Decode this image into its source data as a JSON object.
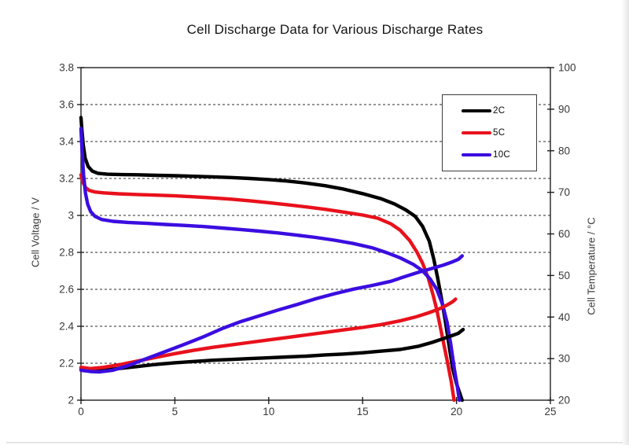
{
  "page": {
    "background": "#ffffff"
  },
  "chart_data": {
    "type": "line",
    "title": "Cell Discharge Data for Various Discharge Rates",
    "x_axis": {
      "label": "",
      "min": 0,
      "max": 25,
      "tick_values": [
        0,
        5,
        10,
        15,
        20,
        25
      ],
      "tick_labels": [
        "0",
        "5",
        "10",
        "15",
        "20",
        "25"
      ]
    },
    "y_left_axis": {
      "label": "Cell Voltage / V",
      "min": 2,
      "max": 3.8,
      "tick_values": [
        3.8,
        3.6,
        3.4,
        3.2,
        3.0,
        2.8,
        2.6,
        2.4,
        2.2,
        2.0
      ],
      "tick_labels": [
        "3.8",
        "3.6",
        "3.4",
        "3.2",
        "3",
        "2.8",
        "2.6",
        "2.4",
        "2.2",
        "2"
      ]
    },
    "y_right_axis": {
      "label": "Cell Temperature / °C",
      "min": 20,
      "max": 100,
      "tick_values": [
        100,
        90,
        80,
        70,
        60,
        50,
        40,
        30,
        20
      ],
      "tick_labels": [
        "100",
        "90",
        "80",
        "70",
        "60",
        "50",
        "40",
        "30",
        "20"
      ]
    },
    "gridlines": {
      "axis": "left",
      "style": "dashed",
      "values": [
        3.6,
        3.4,
        3.2,
        3.0,
        2.8,
        2.6,
        2.4,
        2.2
      ]
    },
    "legend": {
      "position": "top-right",
      "entries": [
        {
          "label": "2C",
          "color": "#000000"
        },
        {
          "label": "5C",
          "color": "#e8111c"
        },
        {
          "label": "10C",
          "color": "#3b0de0"
        }
      ]
    },
    "series": [
      {
        "id": "voltage-2C",
        "name": "2C",
        "measure": "voltage",
        "axis": "left",
        "color": "#000000",
        "points": [
          [
            0,
            3.53
          ],
          [
            0.05,
            3.46
          ],
          [
            0.12,
            3.38
          ],
          [
            0.22,
            3.31
          ],
          [
            0.38,
            3.265
          ],
          [
            0.6,
            3.24
          ],
          [
            0.9,
            3.228
          ],
          [
            1.4,
            3.223
          ],
          [
            2.2,
            3.221
          ],
          [
            3,
            3.22
          ],
          [
            4,
            3.217
          ],
          [
            5,
            3.215
          ],
          [
            6,
            3.212
          ],
          [
            7,
            3.209
          ],
          [
            8,
            3.205
          ],
          [
            9,
            3.2
          ],
          [
            10,
            3.194
          ],
          [
            11,
            3.186
          ],
          [
            12,
            3.175
          ],
          [
            13,
            3.161
          ],
          [
            14,
            3.142
          ],
          [
            15,
            3.118
          ],
          [
            16,
            3.09
          ],
          [
            16.7,
            3.062
          ],
          [
            17.3,
            3.03
          ],
          [
            17.8,
            2.995
          ],
          [
            18.2,
            2.94
          ],
          [
            18.55,
            2.86
          ],
          [
            18.8,
            2.76
          ],
          [
            19,
            2.66
          ],
          [
            19.2,
            2.55
          ],
          [
            19.4,
            2.43
          ],
          [
            19.6,
            2.3
          ],
          [
            19.8,
            2.17
          ],
          [
            20,
            2.09
          ],
          [
            20.3,
            2.0
          ]
        ]
      },
      {
        "id": "voltage-5C",
        "name": "5C",
        "measure": "voltage",
        "axis": "left",
        "color": "#e8111c",
        "points": [
          [
            0,
            3.22
          ],
          [
            0.1,
            3.18
          ],
          [
            0.25,
            3.15
          ],
          [
            0.45,
            3.135
          ],
          [
            0.75,
            3.127
          ],
          [
            1.2,
            3.122
          ],
          [
            2,
            3.117
          ],
          [
            3,
            3.113
          ],
          [
            4,
            3.11
          ],
          [
            5,
            3.106
          ],
          [
            6,
            3.101
          ],
          [
            7,
            3.095
          ],
          [
            8,
            3.088
          ],
          [
            9,
            3.079
          ],
          [
            10,
            3.069
          ],
          [
            11,
            3.058
          ],
          [
            12,
            3.046
          ],
          [
            13,
            3.033
          ],
          [
            14,
            3.018
          ],
          [
            15,
            3.002
          ],
          [
            15.8,
            2.985
          ],
          [
            16.5,
            2.955
          ],
          [
            17,
            2.92
          ],
          [
            17.5,
            2.865
          ],
          [
            17.9,
            2.8
          ],
          [
            18.2,
            2.74
          ],
          [
            18.5,
            2.66
          ],
          [
            18.75,
            2.57
          ],
          [
            18.95,
            2.49
          ],
          [
            19.15,
            2.39
          ],
          [
            19.35,
            2.29
          ],
          [
            19.55,
            2.19
          ],
          [
            19.72,
            2.1
          ],
          [
            19.87,
            2.0
          ]
        ]
      },
      {
        "id": "voltage-10C",
        "name": "10C",
        "measure": "voltage",
        "axis": "left",
        "color": "#3b0de0",
        "points": [
          [
            0,
            3.47
          ],
          [
            0.06,
            3.35
          ],
          [
            0.14,
            3.22
          ],
          [
            0.24,
            3.12
          ],
          [
            0.36,
            3.06
          ],
          [
            0.52,
            3.02
          ],
          [
            0.75,
            2.995
          ],
          [
            1.1,
            2.978
          ],
          [
            1.7,
            2.968
          ],
          [
            2.5,
            2.962
          ],
          [
            3.5,
            2.957
          ],
          [
            4.5,
            2.951
          ],
          [
            5.5,
            2.946
          ],
          [
            6.5,
            2.94
          ],
          [
            7.5,
            2.932
          ],
          [
            8.5,
            2.924
          ],
          [
            9.5,
            2.915
          ],
          [
            10.5,
            2.905
          ],
          [
            11.5,
            2.893
          ],
          [
            12.5,
            2.881
          ],
          [
            13.5,
            2.866
          ],
          [
            14.5,
            2.848
          ],
          [
            15.5,
            2.825
          ],
          [
            16.3,
            2.798
          ],
          [
            17,
            2.77
          ],
          [
            17.7,
            2.735
          ],
          [
            18.2,
            2.7
          ],
          [
            18.6,
            2.655
          ],
          [
            18.95,
            2.6
          ],
          [
            19.25,
            2.52
          ],
          [
            19.5,
            2.42
          ],
          [
            19.7,
            2.3
          ],
          [
            19.9,
            2.16
          ],
          [
            20.05,
            2.07
          ],
          [
            20.15,
            2.0
          ]
        ]
      },
      {
        "id": "temperature-2C",
        "name": "2C",
        "measure": "temperature",
        "axis": "right",
        "color": "#000000",
        "points": [
          [
            0,
            27.7
          ],
          [
            0.5,
            27.4
          ],
          [
            1,
            27.3
          ],
          [
            1.8,
            27.5
          ],
          [
            3,
            28.1
          ],
          [
            4,
            28.6
          ],
          [
            5,
            29.0
          ],
          [
            6,
            29.3
          ],
          [
            7,
            29.6
          ],
          [
            8,
            29.8
          ],
          [
            9,
            30.0
          ],
          [
            10,
            30.2
          ],
          [
            11,
            30.4
          ],
          [
            12,
            30.6
          ],
          [
            13,
            30.9
          ],
          [
            14,
            31.1
          ],
          [
            15,
            31.4
          ],
          [
            16,
            31.8
          ],
          [
            17,
            32.2
          ],
          [
            18,
            33.0
          ],
          [
            18.7,
            33.9
          ],
          [
            19.3,
            34.8
          ],
          [
            19.8,
            35.6
          ],
          [
            20.1,
            36.1
          ],
          [
            20.35,
            37.0
          ]
        ]
      },
      {
        "id": "temperature-5C",
        "name": "5C",
        "measure": "temperature",
        "axis": "right",
        "color": "#e8111c",
        "points": [
          [
            0,
            27.9
          ],
          [
            0.5,
            27.6
          ],
          [
            1.2,
            27.9
          ],
          [
            2,
            28.5
          ],
          [
            3,
            29.4
          ],
          [
            4,
            30.3
          ],
          [
            5,
            31.2
          ],
          [
            6,
            32.0
          ],
          [
            7,
            32.7
          ],
          [
            8,
            33.3
          ],
          [
            9,
            33.9
          ],
          [
            10,
            34.5
          ],
          [
            11,
            35.1
          ],
          [
            12,
            35.7
          ],
          [
            13,
            36.3
          ],
          [
            14,
            36.9
          ],
          [
            15,
            37.5
          ],
          [
            16,
            38.2
          ],
          [
            17,
            39.1
          ],
          [
            17.8,
            40.0
          ],
          [
            18.5,
            41.0
          ],
          [
            19.1,
            42.0
          ],
          [
            19.5,
            42.9
          ],
          [
            19.8,
            43.7
          ],
          [
            19.95,
            44.3
          ]
        ]
      },
      {
        "id": "temperature-10C",
        "name": "10C",
        "measure": "temperature",
        "axis": "right",
        "color": "#3b0de0",
        "points": [
          [
            0,
            27.2
          ],
          [
            0.5,
            26.9
          ],
          [
            1,
            26.8
          ],
          [
            1.7,
            27.2
          ],
          [
            2.5,
            28.3
          ],
          [
            3.5,
            30.0
          ],
          [
            4.5,
            31.7
          ],
          [
            5.5,
            33.4
          ],
          [
            6.5,
            35.2
          ],
          [
            7.5,
            37.2
          ],
          [
            8.5,
            38.9
          ],
          [
            9.5,
            40.3
          ],
          [
            10.5,
            41.7
          ],
          [
            11.5,
            43.0
          ],
          [
            12.5,
            44.4
          ],
          [
            13.5,
            45.6
          ],
          [
            14.5,
            46.7
          ],
          [
            15.5,
            47.6
          ],
          [
            16.5,
            48.6
          ],
          [
            17.3,
            49.8
          ],
          [
            18,
            50.8
          ],
          [
            18.7,
            51.7
          ],
          [
            19.3,
            52.5
          ],
          [
            19.8,
            53.3
          ],
          [
            20.1,
            53.9
          ],
          [
            20.3,
            54.7
          ]
        ]
      }
    ]
  }
}
